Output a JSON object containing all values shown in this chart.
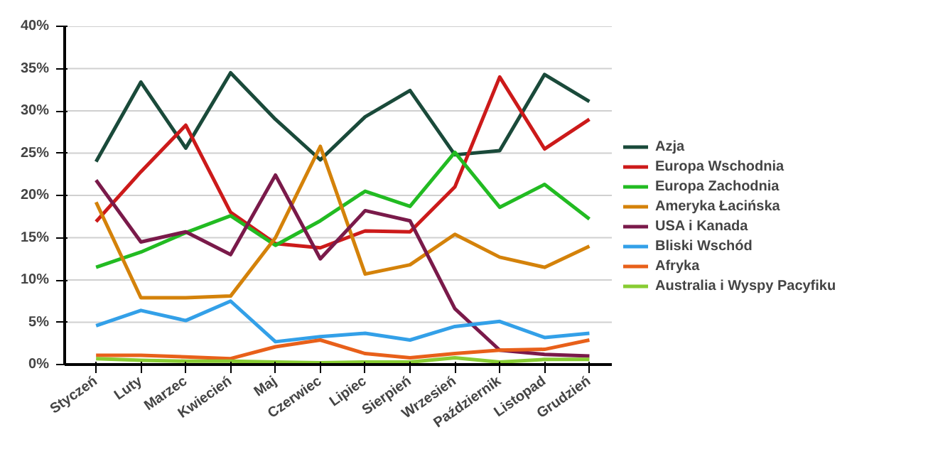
{
  "chart_data": {
    "type": "line",
    "categories": [
      "Styczeń",
      "Luty",
      "Marzec",
      "Kwiecień",
      "Maj",
      "Czerwiec",
      "Lipiec",
      "Sierpień",
      "Wrzesień",
      "Październik",
      "Listopad",
      "Grudzień"
    ],
    "ylim": [
      0,
      40
    ],
    "yticks": [
      {
        "value": 0,
        "label": "0%"
      },
      {
        "value": 5,
        "label": "5%"
      },
      {
        "value": 10,
        "label": "10%"
      },
      {
        "value": 15,
        "label": "15%"
      },
      {
        "value": 20,
        "label": "20%"
      },
      {
        "value": 25,
        "label": "25%"
      },
      {
        "value": 30,
        "label": "30%"
      },
      {
        "value": 35,
        "label": "35%"
      },
      {
        "value": 40,
        "label": "40%"
      }
    ],
    "grid": "y",
    "legend": "right",
    "marker": "none",
    "line_style": "solid",
    "series": [
      {
        "name": "Azja",
        "color": "#1a4a3a",
        "values": [
          24,
          33.4,
          25.6,
          34.5,
          29,
          24.2,
          29.3,
          32.4,
          24.8,
          25.3,
          34.3,
          31.1
        ]
      },
      {
        "name": "Europa Wschodnia",
        "color": "#cc1a1a",
        "values": [
          16.9,
          22.8,
          28.3,
          18,
          14.3,
          13.8,
          15.8,
          15.7,
          21,
          34,
          25.5,
          29
        ]
      },
      {
        "name": "Europa Zachodnia",
        "color": "#22bb22",
        "values": [
          11.5,
          13.3,
          15.6,
          17.6,
          14.1,
          17,
          20.5,
          18.7,
          25.1,
          18.6,
          21.3,
          17.2
        ]
      },
      {
        "name": "Ameryka Łacińska",
        "color": "#d4820a",
        "values": [
          19.2,
          7.9,
          7.9,
          8.1,
          15,
          25.8,
          10.7,
          11.8,
          15.4,
          12.7,
          11.5,
          14
        ]
      },
      {
        "name": "USA i Kanada",
        "color": "#7a1a4a",
        "values": [
          21.8,
          14.5,
          15.7,
          13,
          22.4,
          12.5,
          18.2,
          17,
          6.6,
          1.7,
          1.2,
          1
        ]
      },
      {
        "name": "Bliski Wschód",
        "color": "#33a0e8",
        "values": [
          4.6,
          6.4,
          5.2,
          7.5,
          2.7,
          3.3,
          3.7,
          2.9,
          4.5,
          5.1,
          3.2,
          3.7
        ]
      },
      {
        "name": "Afryka",
        "color": "#e8601a",
        "values": [
          1.1,
          1.1,
          0.9,
          0.7,
          2.1,
          2.9,
          1.3,
          0.8,
          1.3,
          1.7,
          1.8,
          2.9
        ]
      },
      {
        "name": "Australia i Wyspy Pacyfiku",
        "color": "#88cc33",
        "values": [
          0.7,
          0.5,
          0.4,
          0.4,
          0.3,
          0.2,
          0.3,
          0.3,
          0.8,
          0.3,
          0.6,
          0.6
        ]
      }
    ]
  }
}
